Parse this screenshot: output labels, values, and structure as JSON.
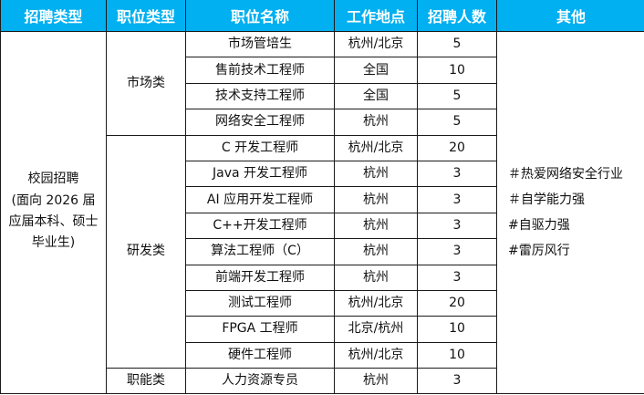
{
  "headers": [
    "招聘类型",
    "职位类型",
    "职位名称",
    "工作地点",
    "招聘人数",
    "其他"
  ],
  "recruit_type": "校园招聘",
  "recruit_type_note": [
    "(面向 2026 届",
    "应届本科、硕士",
    "毕业生)"
  ],
  "groups": [
    {
      "name": "市场类",
      "rows": [
        [
          "市场管培生",
          "杭州/北京",
          "5"
        ],
        [
          "售前技术工程师",
          "全国",
          "10"
        ],
        [
          "技术支持工程师",
          "全国",
          "5"
        ],
        [
          "网络安全工程师",
          "杭州",
          "5"
        ]
      ]
    },
    {
      "name": "研发类",
      "rows": [
        [
          "C 开发工程师",
          "杭州/北京",
          "20"
        ],
        [
          "Java 开发工程师",
          "杭州",
          "3"
        ],
        [
          "AI 应用开发工程师",
          "杭州",
          "3"
        ],
        [
          "C++开发工程师",
          "杭州",
          "3"
        ],
        [
          "算法工程师（C）",
          "杭州",
          "3"
        ],
        [
          "前端开发工程师",
          "杭州",
          "3"
        ],
        [
          "测试工程师",
          "杭州/北京",
          "20"
        ],
        [
          "FPGA 工程师",
          "北京/杭州",
          "10"
        ],
        [
          "硬件工程师",
          "杭州/北京",
          "10"
        ]
      ]
    },
    {
      "name": "职能类",
      "rows": [
        [
          "人力资源专员",
          "杭州",
          "3"
        ]
      ]
    }
  ],
  "other": [
    "＃热爱网络安全行业",
    "＃自学能力强",
    "#自驱力强",
    "#雷厉风行"
  ],
  "colors": {
    "header_bg": "#00B0F0",
    "header_text": "#FFFFFF"
  }
}
